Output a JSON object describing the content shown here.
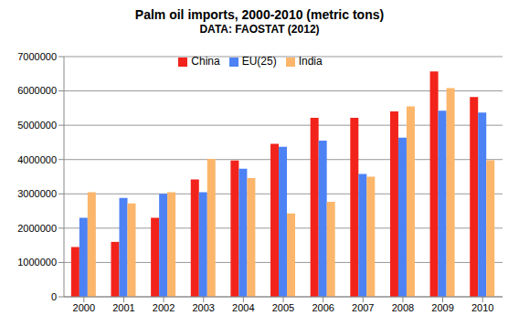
{
  "chart_data": {
    "type": "bar",
    "title": "Palm oil imports, 2000-2010 (metric tons)",
    "subtitle": "DATA: FAOSTAT (2012)",
    "categories": [
      "2000",
      "2001",
      "2002",
      "2003",
      "2004",
      "2005",
      "2006",
      "2007",
      "2008",
      "2009",
      "2010"
    ],
    "series": [
      {
        "name": "China",
        "color": "#f2231b",
        "values": [
          1450000,
          1600000,
          2300000,
          3420000,
          3970000,
          4460000,
          5220000,
          5220000,
          5400000,
          6570000,
          5820000
        ]
      },
      {
        "name": "EU(25)",
        "color": "#4d82f5",
        "values": [
          2300000,
          2880000,
          3000000,
          3050000,
          3730000,
          4370000,
          4550000,
          3580000,
          4640000,
          5420000,
          5370000
        ]
      },
      {
        "name": "India",
        "color": "#fbb66b",
        "values": [
          3050000,
          2720000,
          3050000,
          4020000,
          3460000,
          2430000,
          2770000,
          3500000,
          5550000,
          6080000,
          3980000
        ]
      }
    ],
    "ylim": [
      0,
      7000000
    ],
    "yticks": [
      0,
      1000000,
      2000000,
      3000000,
      4000000,
      5000000,
      6000000,
      7000000
    ],
    "grid": true,
    "legend": "top"
  }
}
